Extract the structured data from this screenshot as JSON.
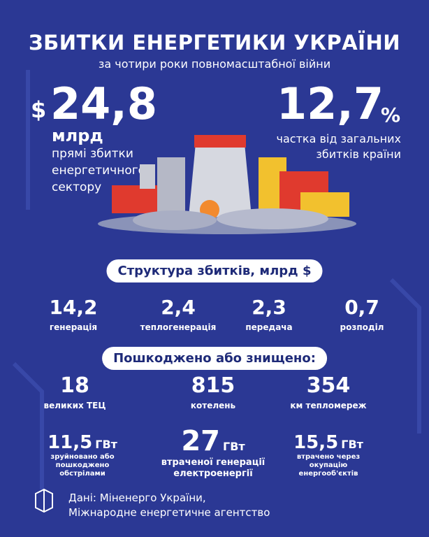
{
  "header": {
    "title": "ЗБИТКИ ЕНЕРГЕТИКИ УКРАЇНИ",
    "subtitle": "за чотири роки повномасштабної війни"
  },
  "main_stats": {
    "left": {
      "currency": "$",
      "value": "24,8",
      "unit": "млрд",
      "lines": [
        "прямі збитки",
        "енергетичного",
        "сектору"
      ]
    },
    "right": {
      "value": "12,7",
      "unit": "%",
      "lines": [
        "частка від загальних",
        "збитків країни"
      ]
    }
  },
  "structure": {
    "heading": "Структура збитків, млрд $",
    "items": [
      {
        "value": "14,2",
        "label": "генерація"
      },
      {
        "value": "2,4",
        "label": "теплогенерація"
      },
      {
        "value": "2,3",
        "label": "передача"
      },
      {
        "value": "0,7",
        "label": "розподіл"
      }
    ]
  },
  "damaged": {
    "heading": "Пошкоджено або знищено:",
    "items": [
      {
        "value": "18",
        "label": "великих ТЕЦ"
      },
      {
        "value": "815",
        "label": "котелень"
      },
      {
        "value": "354",
        "label": "км тепломереж"
      }
    ]
  },
  "capacity": [
    {
      "value": "11,5",
      "unit": "ГВт",
      "lines": [
        "зруйновано або",
        "пошкоджено",
        "обстрілами"
      ]
    },
    {
      "value": "27",
      "unit": "ГВт",
      "lines": [
        "втраченої генерації",
        "електроенергії"
      ]
    },
    {
      "value": "15,5",
      "unit": "ГВт",
      "lines": [
        "втрачено через",
        "окупацію",
        "енергооб'єктів"
      ]
    }
  ],
  "source": {
    "lines": [
      "Дані: Міненерго України,",
      "Міжнародне енергетичне агентство"
    ]
  }
}
